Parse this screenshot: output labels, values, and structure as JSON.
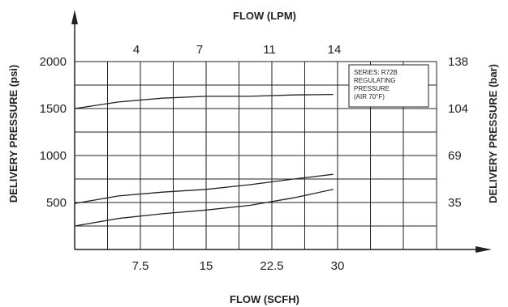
{
  "chart_data": {
    "type": "line",
    "top_axis_title": "FLOW (LPM)",
    "bottom_axis_title": "FLOW (SCFH)",
    "left_axis_title": "DELIVERY PRESSURE (psi)",
    "right_axis_title": "DELIVERY PRESSURE (bar)",
    "x_scfh_ticks": [
      "7.5",
      "15",
      "22.5",
      "30"
    ],
    "x_lpm_ticks": [
      "4",
      "7",
      "11",
      "14"
    ],
    "y_psi_ticks": [
      "500",
      "1000",
      "1500",
      "2000"
    ],
    "y_bar_ticks": [
      "35",
      "69",
      "104",
      "138"
    ],
    "xlim": [
      0,
      37.5
    ],
    "ylim": [
      0,
      2000
    ],
    "note_lines": [
      "SERIES: R72B",
      "REGULATING",
      "PRESSURE",
      "(AIR 70°F)"
    ],
    "series": [
      {
        "x": [
          0,
          5,
          10,
          15,
          20,
          25,
          29.5
        ],
        "y": [
          1500,
          1570,
          1610,
          1630,
          1630,
          1645,
          1650
        ]
      },
      {
        "x": [
          0,
          5,
          10,
          15,
          20,
          25,
          29.5
        ],
        "y": [
          490,
          570,
          610,
          640,
          690,
          750,
          800
        ]
      },
      {
        "x": [
          0,
          5,
          10,
          15,
          20,
          25,
          29.5
        ],
        "y": [
          250,
          330,
          380,
          420,
          470,
          550,
          640
        ]
      }
    ],
    "grid": true,
    "legend": "none"
  },
  "colors": {
    "line": "#222222",
    "grid": "#222222"
  }
}
